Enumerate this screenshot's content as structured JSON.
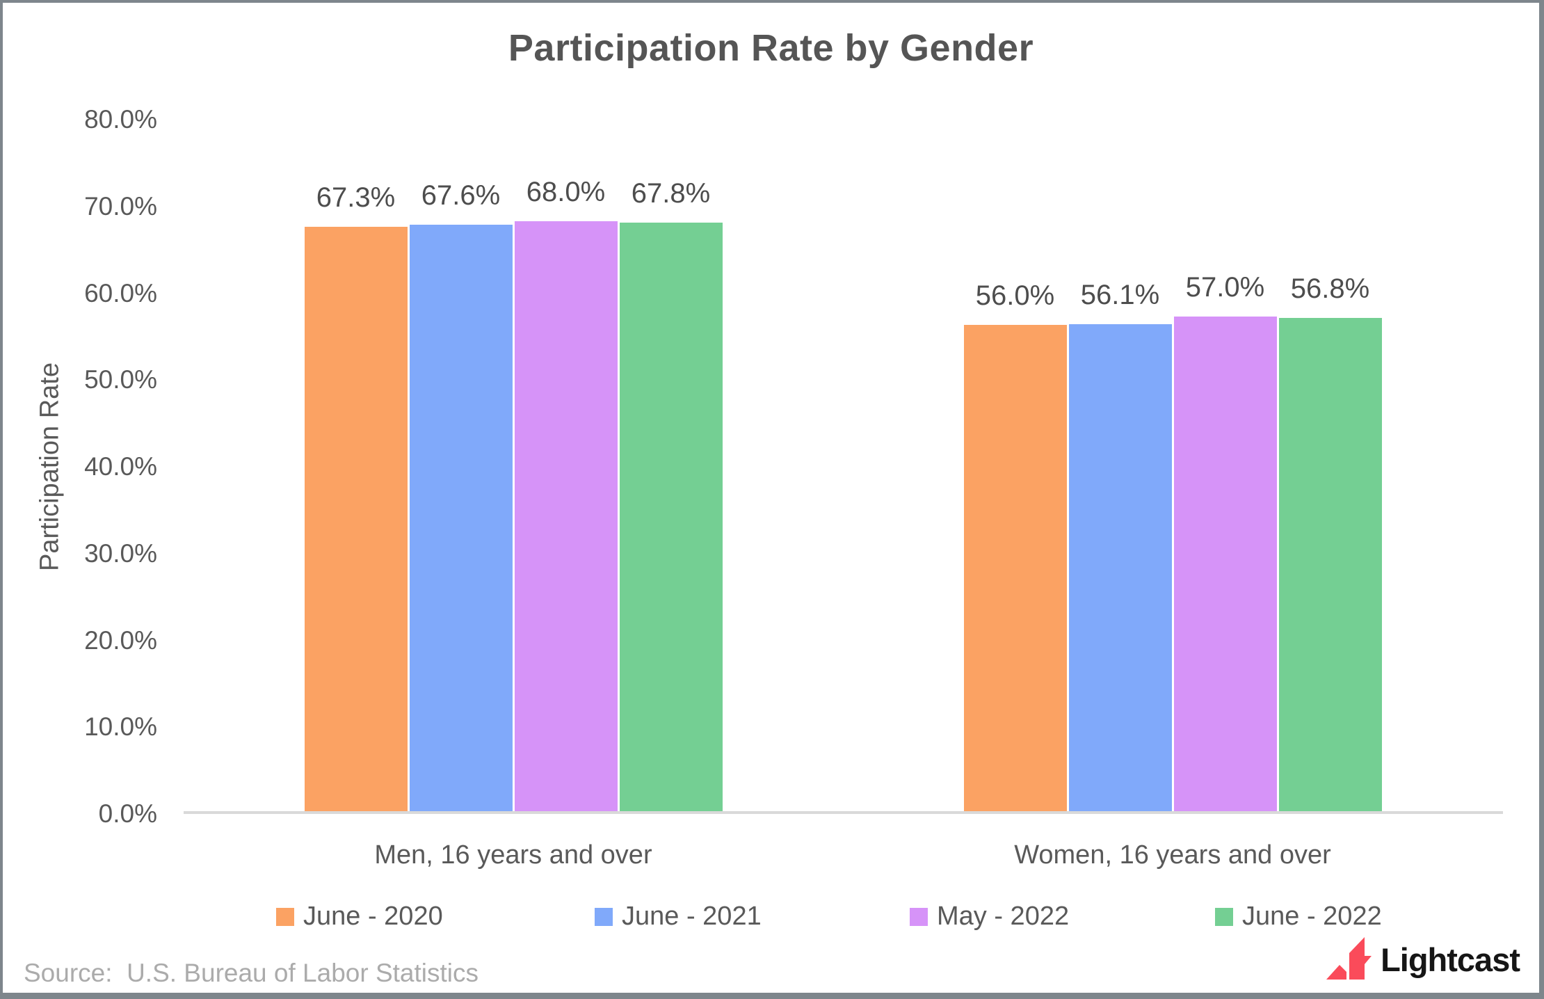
{
  "title": "Participation Rate by Gender",
  "source_text": "Source:  U.S. Bureau of Labor Statistics",
  "branding": {
    "logo_text": "Lightcast",
    "logo_color": "#fa4b5a"
  },
  "colors": {
    "axis_line": "#d9d9d9",
    "label_text": "#595959",
    "title_text": "#555555",
    "source_text": "#ababab",
    "frame_border": "#7e868c"
  },
  "chart_data": {
    "type": "bar",
    "title": "Participation Rate by Gender",
    "xlabel": "",
    "ylabel": "Participation Rate",
    "ylim": [
      0,
      80
    ],
    "grid": false,
    "legend_position": "bottom",
    "ytick_labels": [
      "0.0%",
      "10.0%",
      "20.0%",
      "30.0%",
      "40.0%",
      "50.0%",
      "60.0%",
      "70.0%",
      "80.0%"
    ],
    "categories": [
      "Men, 16 years and over",
      "Women, 16 years and over"
    ],
    "series": [
      {
        "name": "June - 2020",
        "color": "#fba263",
        "values": [
          67.3,
          56.0
        ],
        "labels": [
          "67.3%",
          "56.0%"
        ]
      },
      {
        "name": "June - 2021",
        "color": "#80a9fa",
        "values": [
          67.6,
          56.1
        ],
        "labels": [
          "67.6%",
          "56.1%"
        ]
      },
      {
        "name": "May - 2022",
        "color": "#d693f8",
        "values": [
          68.0,
          57.0
        ],
        "labels": [
          "68.0%",
          "57.0%"
        ]
      },
      {
        "name": "June - 2022",
        "color": "#74cf93",
        "values": [
          67.8,
          56.8
        ],
        "labels": [
          "67.8%",
          "56.8%"
        ]
      }
    ]
  }
}
